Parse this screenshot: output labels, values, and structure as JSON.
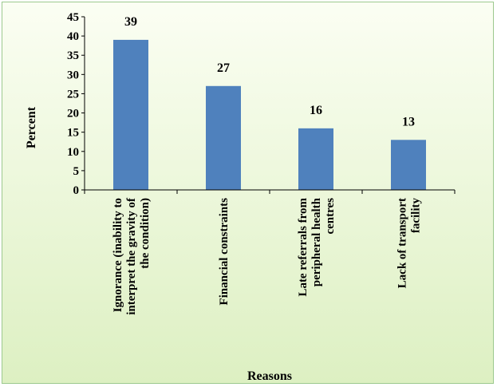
{
  "chart_data": {
    "type": "bar",
    "title": "",
    "xlabel": "Reasons",
    "ylabel": "Percent",
    "categories": [
      [
        "Ignorance (inability to",
        "interpret the gravity of",
        "the condition)"
      ],
      [
        "Financial constraints"
      ],
      [
        "Late referrals from",
        "peripheral health",
        "centres"
      ],
      [
        "Lack of transport",
        "facility"
      ]
    ],
    "values": [
      39,
      27,
      16,
      13
    ],
    "data_labels": [
      "39",
      "27",
      "16",
      "13"
    ],
    "yticks": [
      "0",
      "5",
      "10",
      "15",
      "20",
      "25",
      "30",
      "35",
      "40",
      "45"
    ],
    "ylim": [
      0,
      45
    ],
    "grid": false,
    "legend": "none",
    "colors": {
      "bar": "#4f81bd",
      "plot_area_top": "#fbfef3",
      "plot_area_bottom": "#ddf0c2",
      "border": "#9cc98e",
      "axis": "#000000"
    }
  }
}
